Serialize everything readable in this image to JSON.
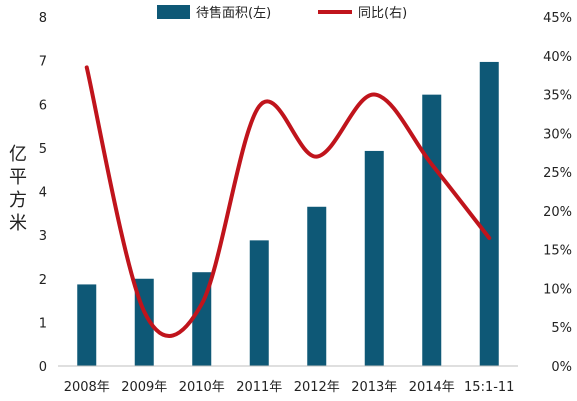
{
  "chart_data": {
    "type": "bar+line",
    "categories": [
      "2008年",
      "2009年",
      "2010年",
      "2011年",
      "2012年",
      "2013年",
      "2014年",
      "15:1-11"
    ],
    "series": [
      {
        "name": "待售面积(左)",
        "kind": "bar",
        "axis": "left",
        "color": "#0E5876",
        "values": [
          1.87,
          2.0,
          2.15,
          2.88,
          3.65,
          4.93,
          6.22,
          6.97
        ]
      },
      {
        "name": "同比(右)",
        "kind": "line",
        "axis": "right",
        "color": "#C0141C",
        "values": [
          38.5,
          7.0,
          8.0,
          33.5,
          27.0,
          35.0,
          26.0,
          16.5
        ]
      }
    ],
    "ylabel": "亿平方米",
    "ylim_left": [
      0,
      8
    ],
    "ylim_right": [
      0,
      45
    ],
    "yticks_left": [
      "0",
      "1",
      "2",
      "3",
      "4",
      "5",
      "6",
      "7",
      "8"
    ],
    "yticks_right": [
      "0%",
      "5%",
      "10%",
      "15%",
      "20%",
      "25%",
      "30%",
      "35%",
      "40%",
      "45%"
    ],
    "legend_placement": "top",
    "grid": false
  }
}
